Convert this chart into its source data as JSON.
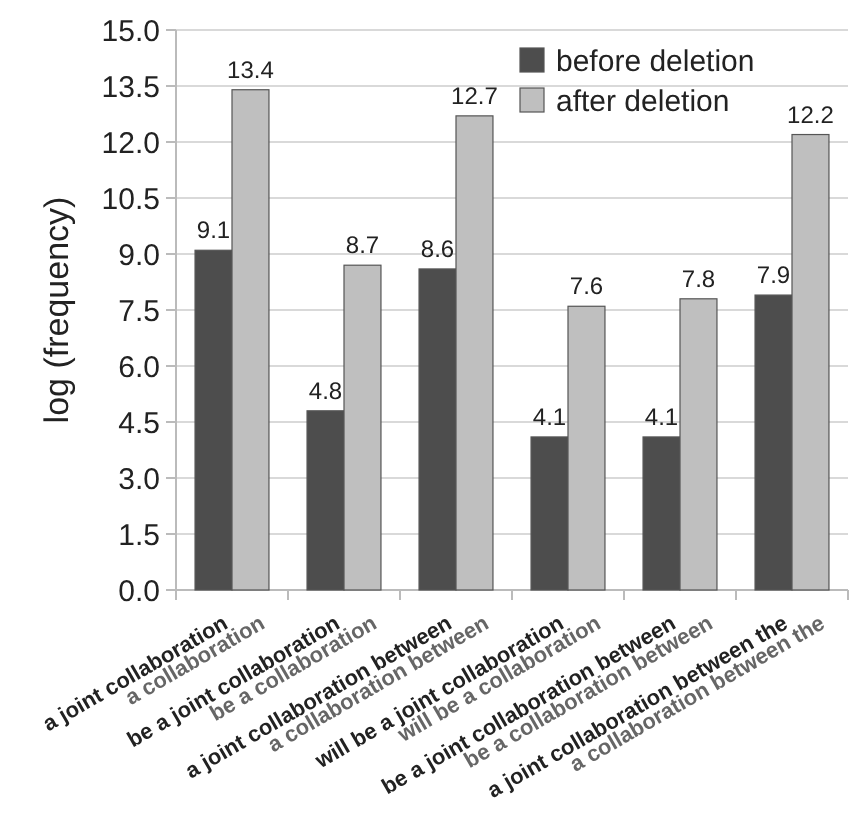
{
  "chart_data": {
    "type": "bar",
    "ylabel": "log (frequency)",
    "categories": [
      "a joint collaboration",
      "a collaboration",
      "be a joint collaboration",
      "be a collaboration",
      "a joint collaboration between",
      "a collaboration between",
      "will be a joint collaboration",
      "will be a collaboration",
      "be a joint collaboration between",
      "be a collaboration between",
      "a joint collaboration between the",
      "a collaboration between the"
    ],
    "series": [
      {
        "name": "before deletion",
        "color": "#4d4d4d",
        "values": [
          9.1,
          null,
          4.8,
          null,
          8.6,
          null,
          4.1,
          null,
          4.1,
          null,
          7.9,
          null
        ]
      },
      {
        "name": "after deletion",
        "color": "#bfbfbf",
        "values": [
          null,
          13.4,
          null,
          8.7,
          null,
          12.7,
          null,
          7.6,
          null,
          7.8,
          null,
          12.2
        ]
      }
    ],
    "ylim": [
      0,
      15
    ],
    "yticks": [
      {
        "value": 0,
        "label": "0.0"
      },
      {
        "value": 1.5,
        "label": "1.5"
      },
      {
        "value": 3,
        "label": "3.0"
      },
      {
        "value": 4.5,
        "label": "4.5"
      },
      {
        "value": 6,
        "label": "6.0"
      },
      {
        "value": 7.5,
        "label": "7.5"
      },
      {
        "value": 9,
        "label": "9.0"
      },
      {
        "value": 10.5,
        "label": "10.5"
      },
      {
        "value": 12,
        "label": "12.0"
      },
      {
        "value": 13.5,
        "label": "13.5"
      },
      {
        "value": 15,
        "label": "15.0"
      }
    ],
    "grid": "y",
    "legend": "top right",
    "data_labels": true
  }
}
